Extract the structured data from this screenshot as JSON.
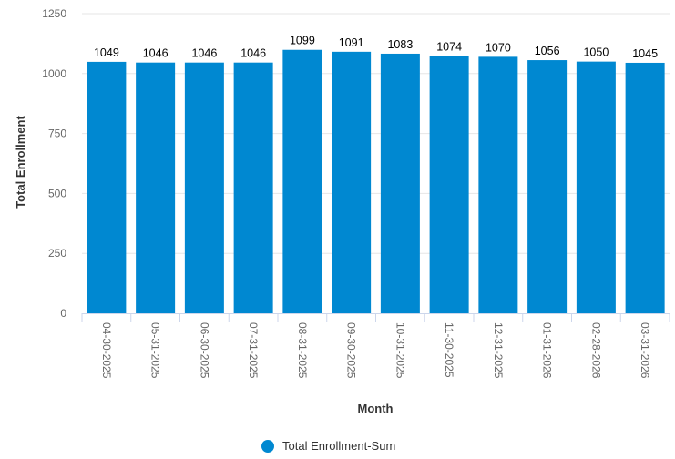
{
  "chart_data": {
    "type": "bar",
    "categories": [
      "04-30-2025",
      "05-31-2025",
      "06-30-2025",
      "07-31-2025",
      "08-31-2025",
      "09-30-2025",
      "10-31-2025",
      "11-30-2025",
      "12-31-2025",
      "01-31-2026",
      "02-28-2026",
      "03-31-2026"
    ],
    "series": [
      {
        "name": "Total Enrollment-Sum",
        "values": [
          1049,
          1046,
          1046,
          1046,
          1099,
          1091,
          1083,
          1074,
          1070,
          1056,
          1050,
          1045
        ]
      }
    ],
    "xlabel": "Month",
    "ylabel": "Total Enrollment",
    "ylim": [
      0,
      1250
    ],
    "yticks": [
      0,
      250,
      500,
      750,
      1000,
      1250
    ],
    "grid": true,
    "legend": "bottom-center",
    "colors": {
      "bar": "#0088D1",
      "grid": "#E6E6E6",
      "axis": "#CCD6EB"
    }
  }
}
